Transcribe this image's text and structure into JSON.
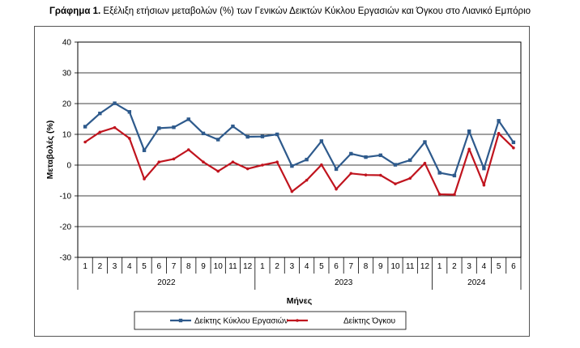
{
  "figure": {
    "label": "Γράφημα 1.",
    "caption": "Εξέλιξη ετήσιων μεταβολών (%) των Γενικών Δεικτών Κύκλου Εργασιών και Όγκου στο Λιανικό Εμπόριο"
  },
  "chart_data": {
    "type": "line",
    "xlabel": "Μήνες",
    "ylabel": "Μεταβολές (%)",
    "ylim": [
      -30,
      40
    ],
    "yticks": [
      -30,
      -20,
      -10,
      0,
      10,
      20,
      30,
      40
    ],
    "grid": true,
    "legend_position": "bottom",
    "categories": [
      "1",
      "2",
      "3",
      "4",
      "5",
      "6",
      "7",
      "8",
      "9",
      "10",
      "11",
      "12",
      "1",
      "2",
      "3",
      "4",
      "5",
      "6",
      "7",
      "8",
      "9",
      "10",
      "11",
      "12",
      "1",
      "2",
      "3",
      "4",
      "5",
      "6"
    ],
    "year_groups": [
      {
        "year": "2022",
        "months": 12
      },
      {
        "year": "2023",
        "months": 12
      },
      {
        "year": "2024",
        "months": 6
      }
    ],
    "series": [
      {
        "name": "Δείκτης Κύκλου Εργασιών",
        "color": "#2e5a8c",
        "marker": "square",
        "values": [
          12.5,
          16.8,
          20.1,
          17.3,
          4.8,
          12.0,
          12.3,
          14.9,
          10.3,
          8.3,
          12.6,
          9.2,
          9.3,
          10.0,
          -0.3,
          1.8,
          7.8,
          -1.3,
          3.7,
          2.6,
          3.2,
          0.1,
          1.6,
          7.5,
          -2.5,
          -3.4,
          11.0,
          -1.1,
          14.4,
          7.4
        ]
      },
      {
        "name": "Δείκτης Όγκου",
        "color": "#c0141e",
        "marker": "circle",
        "values": [
          7.5,
          10.7,
          12.2,
          8.7,
          -4.5,
          1.0,
          2.0,
          5.0,
          1.0,
          -2.0,
          1.0,
          -1.2,
          0.0,
          1.0,
          -8.6,
          -4.9,
          0.1,
          -7.8,
          -2.7,
          -3.2,
          -3.3,
          -6.1,
          -4.3,
          0.6,
          -9.5,
          -9.6,
          5.2,
          -6.5,
          10.3,
          5.6
        ]
      }
    ]
  }
}
